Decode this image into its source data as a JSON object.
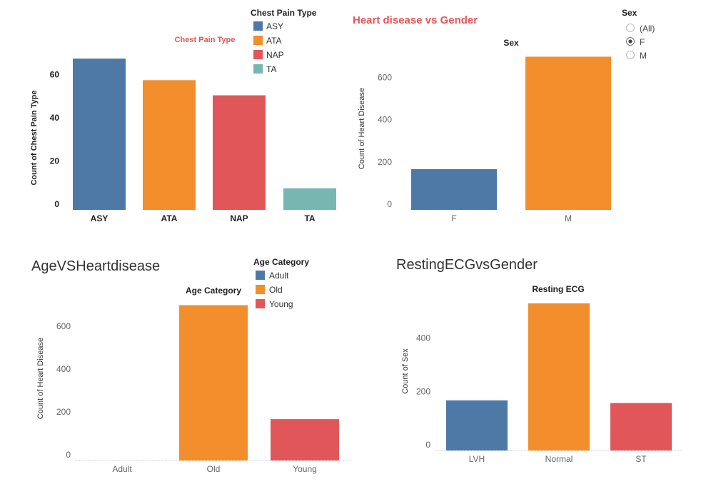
{
  "colors": {
    "blue": "#4e79a7",
    "orange": "#f28e2b",
    "red": "#e15759",
    "teal": "#76b7b2",
    "title_red": "#e15759",
    "text": "#333333",
    "tick": "#666666"
  },
  "chart_data": [
    {
      "type": "bar",
      "title": "Chest Pain Type",
      "ylabel": "Count of Chest Pain Type",
      "xlabel": "",
      "categories": [
        "ASY",
        "ATA",
        "NAP",
        "TA"
      ],
      "values": [
        70,
        60,
        53,
        10
      ],
      "ylim": [
        0,
        72
      ],
      "yticks": [
        0,
        20,
        40,
        60
      ],
      "colors": [
        "#4e79a7",
        "#f28e2b",
        "#e15759",
        "#76b7b2"
      ],
      "legend": {
        "title": "Chest Pain Type",
        "items": [
          "ASY",
          "ATA",
          "NAP",
          "TA"
        ]
      }
    },
    {
      "type": "bar",
      "title": "Heart disease vs Gender",
      "header": "Sex",
      "ylabel": "Count of Heart Disease",
      "xlabel": "",
      "categories": [
        "F",
        "M"
      ],
      "values": [
        193,
        725
      ],
      "ylim": [
        0,
        740
      ],
      "yticks": [
        0,
        200,
        400,
        600
      ],
      "colors": [
        "#4e79a7",
        "#f28e2b"
      ],
      "filter": {
        "title": "Sex",
        "options": [
          "(All)",
          "F",
          "M"
        ],
        "selected": "F"
      }
    },
    {
      "type": "bar",
      "title": "AgeVSHeartdisease",
      "header": "Age Category",
      "ylabel": "Count of Heart Disease",
      "xlabel": "",
      "categories": [
        "Adult",
        "Old",
        "Young"
      ],
      "values": [
        0,
        725,
        193
      ],
      "ylim": [
        0,
        740
      ],
      "yticks": [
        0,
        200,
        400,
        600
      ],
      "colors": [
        "#4e79a7",
        "#f28e2b",
        "#e15759"
      ],
      "legend": {
        "title": "Age Category",
        "items": [
          "Adult",
          "Old",
          "Young"
        ]
      }
    },
    {
      "type": "bar",
      "title": "RestingECGvsGender",
      "header": "Resting ECG",
      "ylabel": "Count of Sex",
      "xlabel": "",
      "categories": [
        "LVH",
        "Normal",
        "ST"
      ],
      "values": [
        188,
        552,
        178
      ],
      "ylim": [
        0,
        560
      ],
      "yticks": [
        0,
        200,
        400
      ],
      "colors": [
        "#4e79a7",
        "#f28e2b",
        "#e15759"
      ]
    }
  ]
}
